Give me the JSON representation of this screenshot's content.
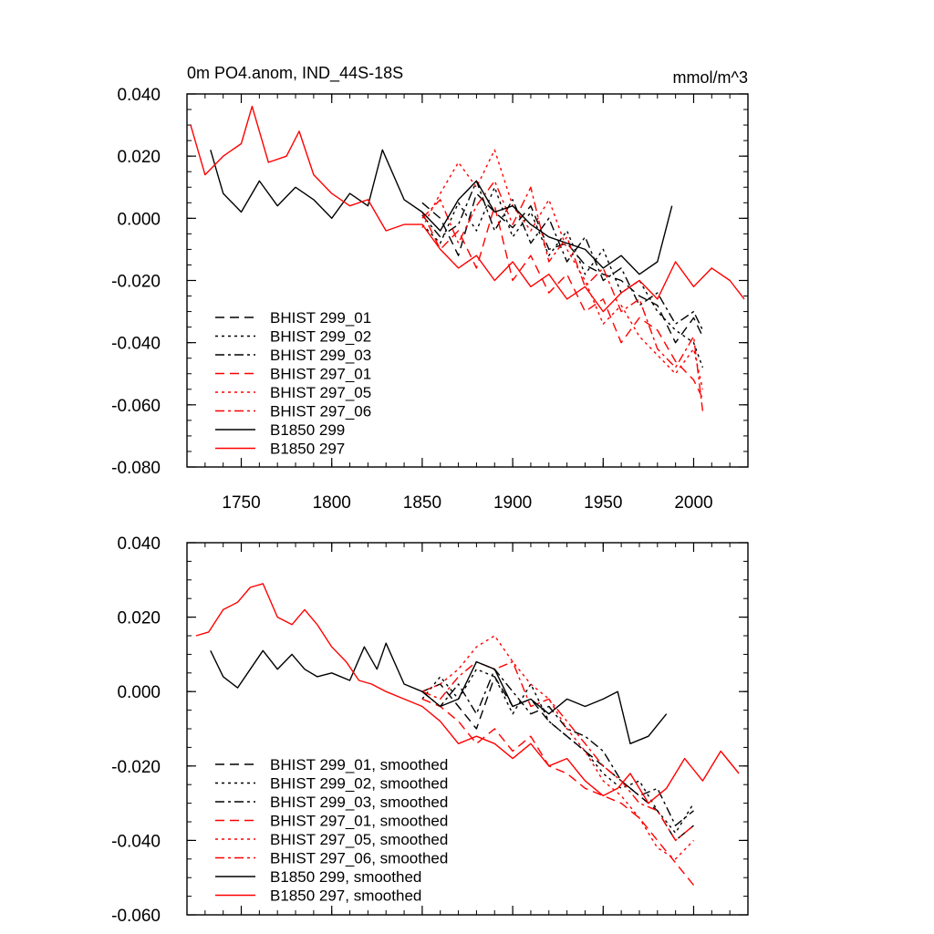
{
  "chart_data": [
    {
      "type": "line",
      "title_left": "0m PO4.anom, IND_44S-18S",
      "title_right": "mmol/m^3",
      "xlabel": "",
      "ylabel": "",
      "xlim": [
        1720,
        2030
      ],
      "ylim": [
        -0.08,
        0.04
      ],
      "yticks": [
        "0.040",
        "0.020",
        "0.000",
        "-0.020",
        "-0.040",
        "-0.060",
        "-0.080"
      ],
      "xticks": [
        "1750",
        "1800",
        "1850",
        "1900",
        "1950",
        "2000"
      ],
      "legend_position": "bottom-left",
      "series": [
        {
          "name": "BHIST 299_01",
          "color": "#000000",
          "dash": "dash",
          "x": [
            1850,
            1860,
            1870,
            1880,
            1890,
            1900,
            1910,
            1920,
            1930,
            1940,
            1950,
            1960,
            1970,
            1980,
            1990,
            2000,
            2005
          ],
          "y": [
            0.005,
            0.0,
            -0.012,
            0.008,
            0.002,
            -0.003,
            0.004,
            -0.01,
            -0.008,
            -0.015,
            -0.018,
            -0.02,
            -0.025,
            -0.028,
            -0.04,
            -0.032,
            -0.038
          ]
        },
        {
          "name": "BHIST 299_02",
          "color": "#000000",
          "dash": "dot",
          "x": [
            1850,
            1860,
            1870,
            1880,
            1890,
            1900,
            1910,
            1920,
            1930,
            1940,
            1950,
            1960,
            1970,
            1980,
            1990,
            2000,
            2005
          ],
          "y": [
            -0.002,
            -0.008,
            0.005,
            -0.004,
            0.01,
            -0.006,
            0.002,
            -0.012,
            -0.004,
            -0.018,
            -0.01,
            -0.024,
            -0.02,
            -0.03,
            -0.036,
            -0.04,
            -0.048
          ]
        },
        {
          "name": "BHIST 299_03",
          "color": "#000000",
          "dash": "dashdot",
          "x": [
            1850,
            1860,
            1870,
            1880,
            1890,
            1900,
            1910,
            1920,
            1930,
            1940,
            1950,
            1960,
            1970,
            1980,
            1990,
            2000,
            2005
          ],
          "y": [
            0.001,
            -0.006,
            -0.002,
            0.012,
            -0.004,
            0.006,
            -0.008,
            0.0,
            -0.014,
            -0.006,
            -0.02,
            -0.016,
            -0.028,
            -0.024,
            -0.034,
            -0.03,
            -0.036
          ]
        },
        {
          "name": "BHIST 297_01",
          "color": "#ff0000",
          "dash": "dash",
          "x": [
            1850,
            1860,
            1870,
            1880,
            1890,
            1900,
            1910,
            1920,
            1930,
            1940,
            1950,
            1960,
            1970,
            1980,
            1990,
            2000,
            2005
          ],
          "y": [
            0.002,
            -0.01,
            -0.004,
            -0.016,
            0.004,
            -0.02,
            -0.012,
            -0.024,
            -0.018,
            -0.03,
            -0.026,
            -0.04,
            -0.032,
            -0.036,
            -0.046,
            -0.052,
            -0.058
          ]
        },
        {
          "name": "BHIST 297_05",
          "color": "#ff0000",
          "dash": "dot",
          "x": [
            1850,
            1860,
            1870,
            1880,
            1890,
            1900,
            1910,
            1920,
            1930,
            1940,
            1950,
            1960,
            1970,
            1980,
            1990,
            2000,
            2005
          ],
          "y": [
            -0.003,
            0.008,
            0.018,
            0.01,
            0.022,
            0.004,
            -0.004,
            0.006,
            -0.01,
            -0.02,
            -0.034,
            -0.028,
            -0.038,
            -0.044,
            -0.05,
            -0.042,
            -0.055
          ]
        },
        {
          "name": "BHIST 297_06",
          "color": "#ff0000",
          "dash": "dashdot",
          "x": [
            1850,
            1860,
            1870,
            1880,
            1890,
            1900,
            1910,
            1920,
            1930,
            1940,
            1950,
            1960,
            1970,
            1980,
            1990,
            2000,
            2005
          ],
          "y": [
            0.0,
            0.006,
            -0.008,
            0.004,
            0.012,
            -0.002,
            0.01,
            -0.014,
            -0.006,
            -0.022,
            -0.016,
            -0.03,
            -0.026,
            -0.042,
            -0.048,
            -0.038,
            -0.062
          ]
        },
        {
          "name": "B1850 299",
          "color": "#000000",
          "dash": "solid",
          "x": [
            1733,
            1740,
            1750,
            1760,
            1770,
            1780,
            1790,
            1800,
            1810,
            1820,
            1828,
            1840,
            1850,
            1860,
            1870,
            1880,
            1890,
            1900,
            1910,
            1920,
            1930,
            1940,
            1950,
            1960,
            1970,
            1980,
            1988
          ],
          "y": [
            0.022,
            0.008,
            0.002,
            0.012,
            0.004,
            0.01,
            0.006,
            0.0,
            0.008,
            0.004,
            0.022,
            0.006,
            0.002,
            -0.004,
            0.006,
            0.012,
            0.002,
            0.004,
            -0.002,
            -0.006,
            -0.008,
            -0.01,
            -0.016,
            -0.012,
            -0.018,
            -0.014,
            0.004
          ]
        },
        {
          "name": "B1850 297",
          "color": "#ff0000",
          "dash": "solid",
          "x": [
            1722,
            1730,
            1740,
            1750,
            1756,
            1765,
            1775,
            1782,
            1790,
            1800,
            1810,
            1820,
            1830,
            1840,
            1850,
            1860,
            1870,
            1880,
            1890,
            1900,
            1910,
            1920,
            1930,
            1940,
            1950,
            1960,
            1970,
            1980,
            1990,
            2000,
            2010,
            2020,
            2028
          ],
          "y": [
            0.03,
            0.014,
            0.02,
            0.024,
            0.036,
            0.018,
            0.02,
            0.028,
            0.014,
            0.008,
            0.004,
            0.006,
            -0.004,
            -0.002,
            -0.002,
            -0.01,
            -0.016,
            -0.012,
            -0.02,
            -0.014,
            -0.022,
            -0.018,
            -0.026,
            -0.022,
            -0.03,
            -0.024,
            -0.02,
            -0.026,
            -0.014,
            -0.022,
            -0.016,
            -0.02,
            -0.026
          ]
        }
      ]
    },
    {
      "type": "line",
      "title_left": "",
      "title_right": "",
      "xlabel": "",
      "ylabel": "",
      "xlim": [
        1720,
        2030
      ],
      "ylim": [
        -0.06,
        0.04
      ],
      "yticks": [
        "0.040",
        "0.020",
        "0.000",
        "-0.020",
        "-0.040",
        "-0.060"
      ],
      "xticks": [],
      "legend_position": "bottom-left",
      "series": [
        {
          "name": "BHIST 299_01, smoothed",
          "color": "#000000",
          "dash": "dash",
          "x": [
            1850,
            1860,
            1870,
            1880,
            1890,
            1900,
            1910,
            1920,
            1930,
            1940,
            1950,
            1960,
            1970,
            1980,
            1990,
            2000
          ],
          "y": [
            0.0,
            0.002,
            -0.004,
            -0.01,
            0.004,
            -0.004,
            -0.002,
            -0.008,
            -0.012,
            -0.016,
            -0.02,
            -0.024,
            -0.028,
            -0.032,
            -0.04,
            -0.036
          ]
        },
        {
          "name": "BHIST 299_02, smoothed",
          "color": "#000000",
          "dash": "dot",
          "x": [
            1850,
            1860,
            1870,
            1880,
            1890,
            1900,
            1910,
            1920,
            1930,
            1940,
            1950,
            1960,
            1970,
            1980,
            1990,
            2000
          ],
          "y": [
            -0.002,
            0.004,
            -0.002,
            0.006,
            0.004,
            -0.006,
            0.002,
            -0.008,
            -0.012,
            -0.016,
            -0.022,
            -0.026,
            -0.024,
            -0.032,
            -0.038,
            -0.03
          ]
        },
        {
          "name": "BHIST 299_03, smoothed",
          "color": "#000000",
          "dash": "dashdot",
          "x": [
            1850,
            1860,
            1870,
            1880,
            1890,
            1900,
            1910,
            1920,
            1930,
            1940,
            1950,
            1960,
            1970,
            1980,
            1990,
            2000
          ],
          "y": [
            0.0,
            -0.004,
            0.002,
            -0.006,
            0.006,
            0.0,
            -0.006,
            -0.004,
            -0.01,
            -0.012,
            -0.016,
            -0.024,
            -0.028,
            -0.026,
            -0.036,
            -0.032
          ]
        },
        {
          "name": "BHIST 297_01, smoothed",
          "color": "#ff0000",
          "dash": "dash",
          "x": [
            1850,
            1860,
            1870,
            1880,
            1890,
            1900,
            1910,
            1920,
            1930,
            1940,
            1950,
            1960,
            1970,
            1980,
            1990,
            2000
          ],
          "y": [
            -0.002,
            -0.004,
            -0.008,
            -0.014,
            -0.01,
            -0.016,
            -0.012,
            -0.02,
            -0.022,
            -0.026,
            -0.028,
            -0.03,
            -0.034,
            -0.04,
            -0.046,
            -0.052
          ]
        },
        {
          "name": "BHIST 297_05, smoothed",
          "color": "#ff0000",
          "dash": "dot",
          "x": [
            1850,
            1860,
            1870,
            1880,
            1890,
            1900,
            1910,
            1920,
            1930,
            1940,
            1950,
            1960,
            1970,
            1980,
            1990,
            2000
          ],
          "y": [
            0.0,
            0.002,
            0.006,
            0.012,
            0.015,
            0.008,
            0.002,
            -0.002,
            -0.01,
            -0.016,
            -0.024,
            -0.028,
            -0.034,
            -0.042,
            -0.045,
            -0.04
          ]
        },
        {
          "name": "BHIST 297_06, smoothed",
          "color": "#ff0000",
          "dash": "dashdot",
          "x": [
            1850,
            1860,
            1870,
            1880,
            1890,
            1900,
            1910,
            1920,
            1930,
            1940,
            1950,
            1960,
            1970,
            1980,
            1990,
            2000
          ],
          "y": [
            0.0,
            -0.002,
            0.004,
            0.008,
            0.006,
            0.008,
            -0.004,
            -0.002,
            -0.008,
            -0.014,
            -0.02,
            -0.024,
            -0.03,
            -0.032,
            -0.04,
            -0.036
          ]
        },
        {
          "name": "B1850 299, smoothed",
          "color": "#000000",
          "dash": "solid",
          "x": [
            1733,
            1740,
            1748,
            1755,
            1762,
            1770,
            1778,
            1785,
            1792,
            1800,
            1810,
            1818,
            1825,
            1830,
            1840,
            1850,
            1860,
            1870,
            1880,
            1890,
            1900,
            1910,
            1920,
            1930,
            1940,
            1950,
            1958,
            1965,
            1975,
            1985
          ],
          "y": [
            0.011,
            0.004,
            0.001,
            0.006,
            0.011,
            0.006,
            0.01,
            0.006,
            0.004,
            0.005,
            0.003,
            0.012,
            0.006,
            0.013,
            0.002,
            0.0,
            -0.004,
            -0.002,
            0.008,
            0.006,
            -0.004,
            -0.002,
            -0.006,
            -0.002,
            -0.004,
            -0.002,
            0.0,
            -0.014,
            -0.012,
            -0.006
          ]
        },
        {
          "name": "B1850 297, smoothed",
          "color": "#ff0000",
          "dash": "solid",
          "x": [
            1725,
            1732,
            1740,
            1748,
            1755,
            1762,
            1770,
            1778,
            1785,
            1792,
            1800,
            1808,
            1815,
            1822,
            1830,
            1840,
            1850,
            1860,
            1870,
            1880,
            1890,
            1900,
            1910,
            1920,
            1930,
            1940,
            1950,
            1958,
            1965,
            1975,
            1985,
            1995,
            2005,
            2015,
            2025
          ],
          "y": [
            0.015,
            0.016,
            0.022,
            0.024,
            0.028,
            0.029,
            0.02,
            0.018,
            0.022,
            0.018,
            0.012,
            0.008,
            0.003,
            0.002,
            0.0,
            -0.002,
            -0.004,
            -0.008,
            -0.014,
            -0.012,
            -0.014,
            -0.018,
            -0.014,
            -0.02,
            -0.018,
            -0.024,
            -0.028,
            -0.026,
            -0.022,
            -0.03,
            -0.026,
            -0.018,
            -0.024,
            -0.016,
            -0.022
          ]
        }
      ]
    }
  ]
}
